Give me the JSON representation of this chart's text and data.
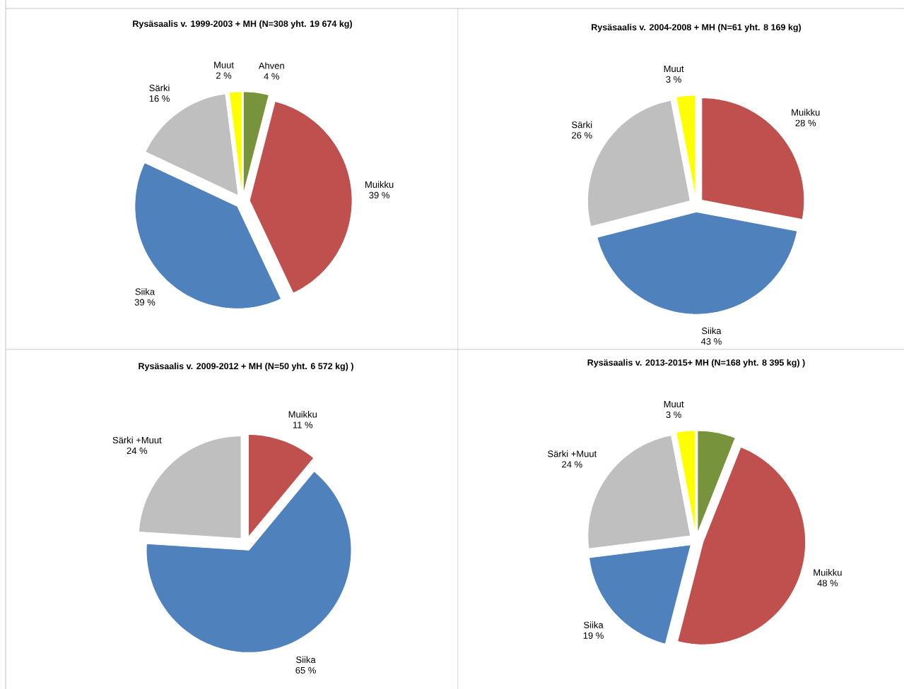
{
  "chart_data": [
    {
      "type": "pie",
      "title": "Rysäsaalis v. 1999-2003 + MH (N=308 yht. 19 674 kg)",
      "categories": [
        "Ahven",
        "Muikku",
        "Siika",
        "Särki",
        "Muut"
      ],
      "values": [
        4,
        39,
        39,
        16,
        2
      ],
      "value_labels": [
        "4 %",
        "39 %",
        "39 %",
        "16 %",
        "2 %"
      ],
      "colors": [
        "#77933c",
        "#c0504d",
        "#4f81bd",
        "#bfbfbf",
        "#ffff00"
      ]
    },
    {
      "type": "pie",
      "title": "Rysäsaalis v. 2004-2008 + MH (N=61 yht. 8 169 kg)",
      "categories": [
        "Muikku",
        "Siika",
        "Särki",
        "Muut"
      ],
      "values": [
        28,
        43,
        26,
        3
      ],
      "value_labels": [
        "28 %",
        "43 %",
        "26 %",
        "3 %"
      ],
      "colors": [
        "#c0504d",
        "#4f81bd",
        "#bfbfbf",
        "#ffff00"
      ]
    },
    {
      "type": "pie",
      "title": "Rysäsaalis v. 2009-2012 + MH (N=50 yht. 6 572 kg) )",
      "categories": [
        "Muikku",
        "Siika",
        "Särki +Muut"
      ],
      "values": [
        11,
        65,
        24
      ],
      "value_labels": [
        "11 %",
        "65 %",
        "24 %"
      ],
      "colors": [
        "#c0504d",
        "#4f81bd",
        "#bfbfbf"
      ]
    },
    {
      "type": "pie",
      "title": "Rysäsaalis v. 2013-2015+ MH (N=168 yht. 8 395 kg) )",
      "categories": [
        null,
        "Muikku",
        "Siika",
        "Särki +Muut",
        "Muut"
      ],
      "values": [
        6,
        48,
        19,
        24,
        3
      ],
      "value_labels": [
        null,
        "48 %",
        "19 %",
        "24 %",
        "3 %"
      ],
      "colors": [
        "#77933c",
        "#c0504d",
        "#4f81bd",
        "#bfbfbf",
        "#ffff00"
      ]
    }
  ]
}
